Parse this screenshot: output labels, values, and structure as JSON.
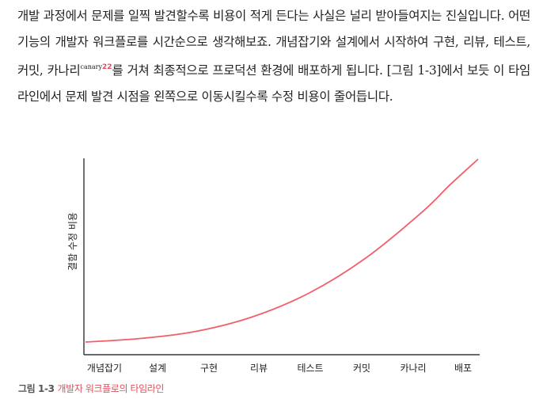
{
  "paragraph": {
    "before_sup": "개발 과정에서 문제를 일찍 발견할수록 비용이 적게 든다는 사실은 널리 받아들여지는 진실입니다. 어떤 기능의 개발자 워크플로를 시간순으로 생각해보죠. 개념잡기와 설계에서 시작하여 구현, 리뷰, 테스트, 커밋, 카나리",
    "sup_word": "canary",
    "sup_num": "22",
    "after_sup": "를 거쳐 최종적으로 프로덕션 환경에 배포하게 됩니다. [그림 1-3]에서 보듯 이 타임라인에서 문제 발견 시점을 왼쪽으로 이동시킬수록 수정 비용이 줄어듭니다."
  },
  "chart_data": {
    "type": "line",
    "ylabel": "결함 수정 비용",
    "categories": [
      "개념잡기",
      "설계",
      "구현",
      "리뷰",
      "테스트",
      "커밋",
      "카나리",
      "배포"
    ],
    "series": [
      {
        "color": "#f0606c",
        "x": [
          0,
          1,
          2,
          3,
          4,
          5,
          6,
          6.5,
          7
        ],
        "values": [
          0.0,
          0.02,
          0.06,
          0.14,
          0.27,
          0.46,
          0.71,
          0.86,
          1.0
        ]
      }
    ],
    "x_axis_color": "#111111",
    "y_axis_color": "#111111"
  },
  "caption": {
    "number": "그림 1-3",
    "text": "개발자 워크플로의 타임라인"
  }
}
